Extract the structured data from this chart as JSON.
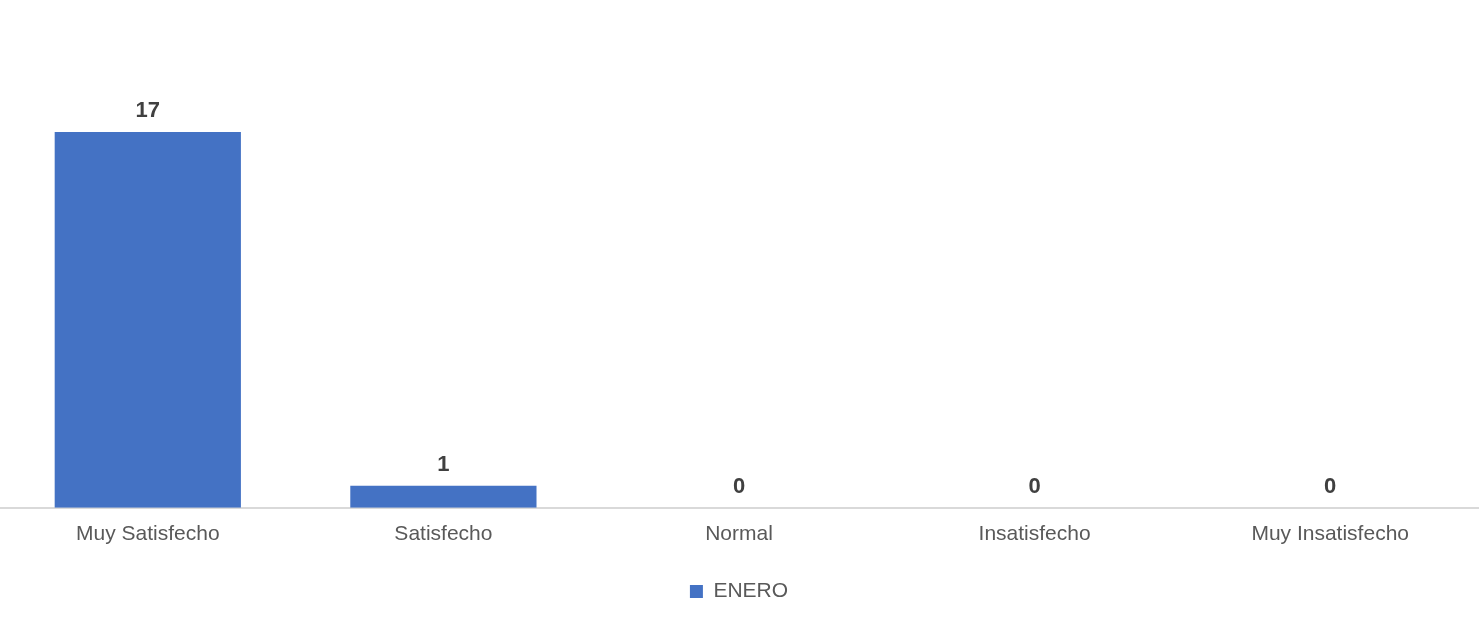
{
  "chart_data": {
    "type": "bar",
    "categories": [
      "Muy Satisfecho",
      "Satisfecho",
      "Normal",
      "Insatisfecho",
      "Muy Insatisfecho"
    ],
    "series": [
      {
        "name": "ENERO",
        "color": "#4472c4",
        "values": [
          17,
          1,
          0,
          0,
          0
        ]
      }
    ],
    "data_labels": true,
    "legend": "bottom",
    "grid": false
  }
}
